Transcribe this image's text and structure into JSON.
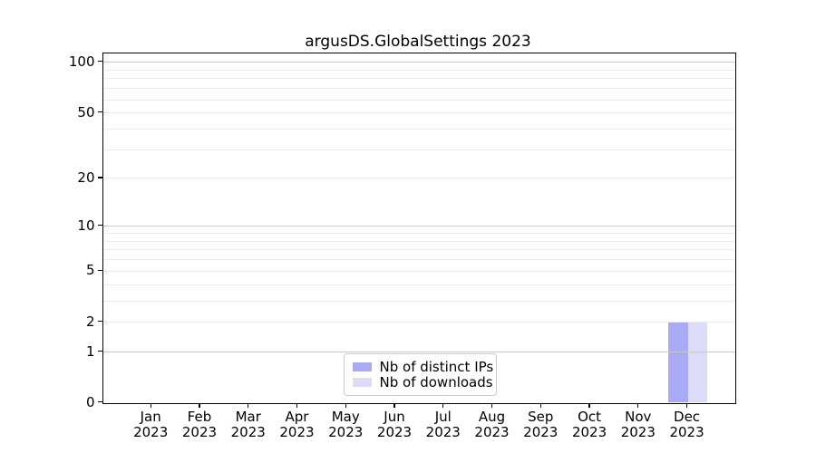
{
  "title": "argusDS.GlobalSettings 2023",
  "colors": {
    "distinct_ips": "#a9a9f4",
    "downloads": "#dcdcf9",
    "grid_major": "#c8c8c8",
    "grid_minor": "#ebebeb",
    "spine": "#000000",
    "text": "#000000",
    "legend_border": "#cccccc"
  },
  "chart_data": {
    "type": "bar",
    "title": "argusDS.GlobalSettings 2023",
    "x_months": [
      "Jan",
      "Feb",
      "Mar",
      "Apr",
      "May",
      "Jun",
      "Jul",
      "Aug",
      "Sep",
      "Oct",
      "Nov",
      "Dec"
    ],
    "x_year": "2023",
    "categories": [
      "Jan 2023",
      "Feb 2023",
      "Mar 2023",
      "Apr 2023",
      "May 2023",
      "Jun 2023",
      "Jul 2023",
      "Aug 2023",
      "Sep 2023",
      "Oct 2023",
      "Nov 2023",
      "Dec 2023"
    ],
    "series": [
      {
        "name": "Nb of distinct IPs",
        "color": "#a9a9f4",
        "values": [
          0,
          0,
          0,
          0,
          0,
          0,
          0,
          0,
          0,
          0,
          0,
          2
        ]
      },
      {
        "name": "Nb of downloads",
        "color": "#dcdcf9",
        "values": [
          0,
          0,
          0,
          0,
          0,
          0,
          0,
          0,
          0,
          0,
          0,
          2
        ]
      }
    ],
    "y_scale": "log1p",
    "y_tick_labels": [
      0,
      1,
      2,
      5,
      10,
      20,
      50,
      100
    ],
    "y_major_grid": [
      1,
      10,
      100
    ],
    "y_minor_grid": [
      2,
      3,
      4,
      5,
      6,
      7,
      8,
      9,
      20,
      30,
      40,
      50,
      60,
      70,
      80,
      90
    ],
    "ylim": [
      0,
      111
    ],
    "xlabel": "",
    "ylabel": "",
    "grid": "y-only",
    "legend_position": "lower-center"
  }
}
